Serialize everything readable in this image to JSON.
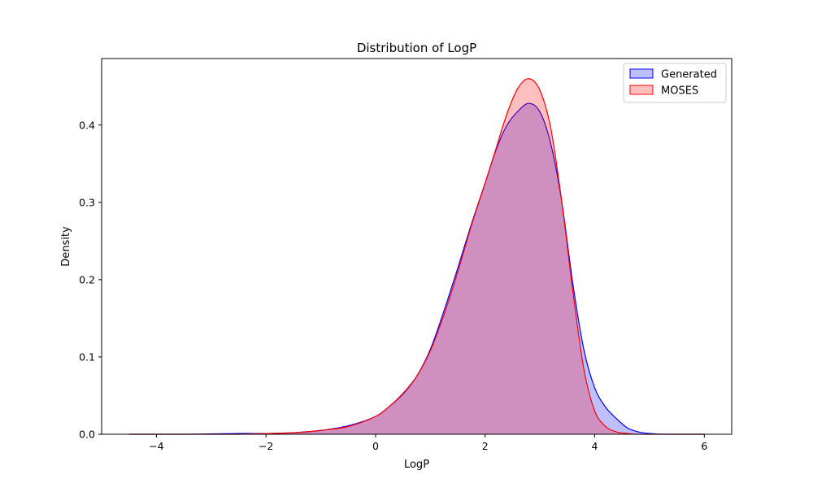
{
  "chart_data": {
    "type": "area",
    "title": "Distribution of LogP",
    "xlabel": "LogP",
    "ylabel": "Density",
    "xlim": [
      -5.0,
      6.5
    ],
    "ylim": [
      0,
      0.486
    ],
    "xticks": [
      -4,
      -2,
      0,
      2,
      4,
      6
    ],
    "xtick_labels": [
      "−4",
      "−2",
      "0",
      "2",
      "4",
      "6"
    ],
    "yticks": [
      0.0,
      0.1,
      0.2,
      0.3,
      0.4
    ],
    "ytick_labels": [
      "0.0",
      "0.1",
      "0.2",
      "0.3",
      "0.4"
    ],
    "grid": false,
    "legend_position": "top-right",
    "series": [
      {
        "name": "Generated",
        "line_color": "#0000ff",
        "fill_color": "#0000ff",
        "fill_opacity": 0.25,
        "x": [
          -4.5,
          -3.5,
          -2.5,
          -2.0,
          -1.5,
          -1.0,
          -0.5,
          0.0,
          0.25,
          0.5,
          0.75,
          1.0,
          1.25,
          1.5,
          1.75,
          2.0,
          2.2,
          2.4,
          2.6,
          2.8,
          3.0,
          3.2,
          3.4,
          3.6,
          3.8,
          4.0,
          4.2,
          4.4,
          4.6,
          4.8,
          5.0,
          5.3,
          5.6,
          6.0
        ],
        "y": [
          0.0,
          0.0,
          0.001,
          0.001,
          0.002,
          0.005,
          0.011,
          0.023,
          0.036,
          0.052,
          0.075,
          0.11,
          0.16,
          0.215,
          0.272,
          0.325,
          0.368,
          0.4,
          0.418,
          0.428,
          0.417,
          0.375,
          0.3,
          0.195,
          0.11,
          0.06,
          0.035,
          0.02,
          0.008,
          0.003,
          0.001,
          0.0,
          0.0,
          0.0
        ]
      },
      {
        "name": "MOSES",
        "line_color": "#ff0000",
        "fill_color": "#ff0000",
        "fill_opacity": 0.25,
        "x": [
          -4.5,
          -3.5,
          -2.5,
          -2.0,
          -1.5,
          -1.0,
          -0.5,
          0.0,
          0.25,
          0.5,
          0.75,
          1.0,
          1.25,
          1.5,
          1.75,
          2.0,
          2.2,
          2.4,
          2.6,
          2.8,
          3.0,
          3.2,
          3.4,
          3.6,
          3.8,
          4.0,
          4.2,
          4.4,
          4.6,
          4.8,
          5.0,
          5.3,
          5.6,
          6.0
        ],
        "y": [
          0.0,
          0.0,
          0.0,
          0.001,
          0.002,
          0.005,
          0.01,
          0.023,
          0.036,
          0.053,
          0.075,
          0.108,
          0.155,
          0.21,
          0.27,
          0.325,
          0.37,
          0.415,
          0.448,
          0.46,
          0.445,
          0.395,
          0.3,
          0.185,
          0.085,
          0.03,
          0.01,
          0.003,
          0.001,
          0.0,
          0.0,
          0.0,
          0.0,
          0.0
        ]
      }
    ]
  }
}
